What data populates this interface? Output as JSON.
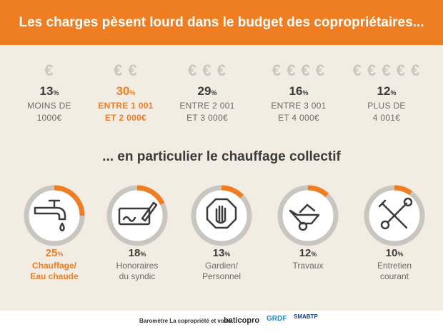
{
  "header": {
    "title": "Les charges pèsent lourd dans le budget des copropriétaires..."
  },
  "colors": {
    "accent": "#ef7d22",
    "ring_track": "#c9c6c1",
    "text": "#3b3b3b",
    "background": "#f3ece3"
  },
  "chart_data": [
    {
      "type": "table",
      "title": "Les charges pèsent lourd dans le budget des copropriétaires...",
      "unit": "%",
      "categories": [
        {
          "euros": "€",
          "value": 13,
          "label_lines": [
            "MOINS DE",
            "1000€"
          ],
          "highlighted": false
        },
        {
          "euros": "€ €",
          "value": 30,
          "label_lines": [
            "ENTRE 1 001",
            "ET 2 000€"
          ],
          "highlighted": true
        },
        {
          "euros": "€ € €",
          "value": 29,
          "label_lines": [
            "ENTRE 2 001",
            "ET 3 000€"
          ],
          "highlighted": false
        },
        {
          "euros": "€ € € €",
          "value": 16,
          "label_lines": [
            "ENTRE 3 001",
            "ET 4 000€"
          ],
          "highlighted": false
        },
        {
          "euros": "€ € € € €",
          "value": 12,
          "label_lines": [
            "PLUS DE",
            "4 001€"
          ],
          "highlighted": false
        }
      ]
    },
    {
      "type": "pie",
      "title": "... en particulier le chauffage collectif",
      "unit": "%",
      "items": [
        {
          "icon": "faucet-icon",
          "value": 25,
          "label_lines": [
            "Chauffage/",
            "Eau chaude"
          ],
          "highlighted": true
        },
        {
          "icon": "check-pen-icon",
          "value": 18,
          "label_lines": [
            "Honoraires",
            "du syndic"
          ],
          "highlighted": false
        },
        {
          "icon": "stop-hand-icon",
          "value": 13,
          "label_lines": [
            "Gardien/",
            "Personnel"
          ],
          "highlighted": false
        },
        {
          "icon": "wheelbarrow-icon",
          "value": 12,
          "label_lines": [
            "Travaux"
          ],
          "highlighted": false
        },
        {
          "icon": "tools-icon",
          "value": 10,
          "label_lines": [
            "Entretien",
            "courant"
          ],
          "highlighted": false
        }
      ]
    }
  ],
  "footer": {
    "text": "Baromètre La copropriété et vous",
    "logo1": "baticopro",
    "logo2": "GRDF",
    "logo3": "SMABTP"
  }
}
